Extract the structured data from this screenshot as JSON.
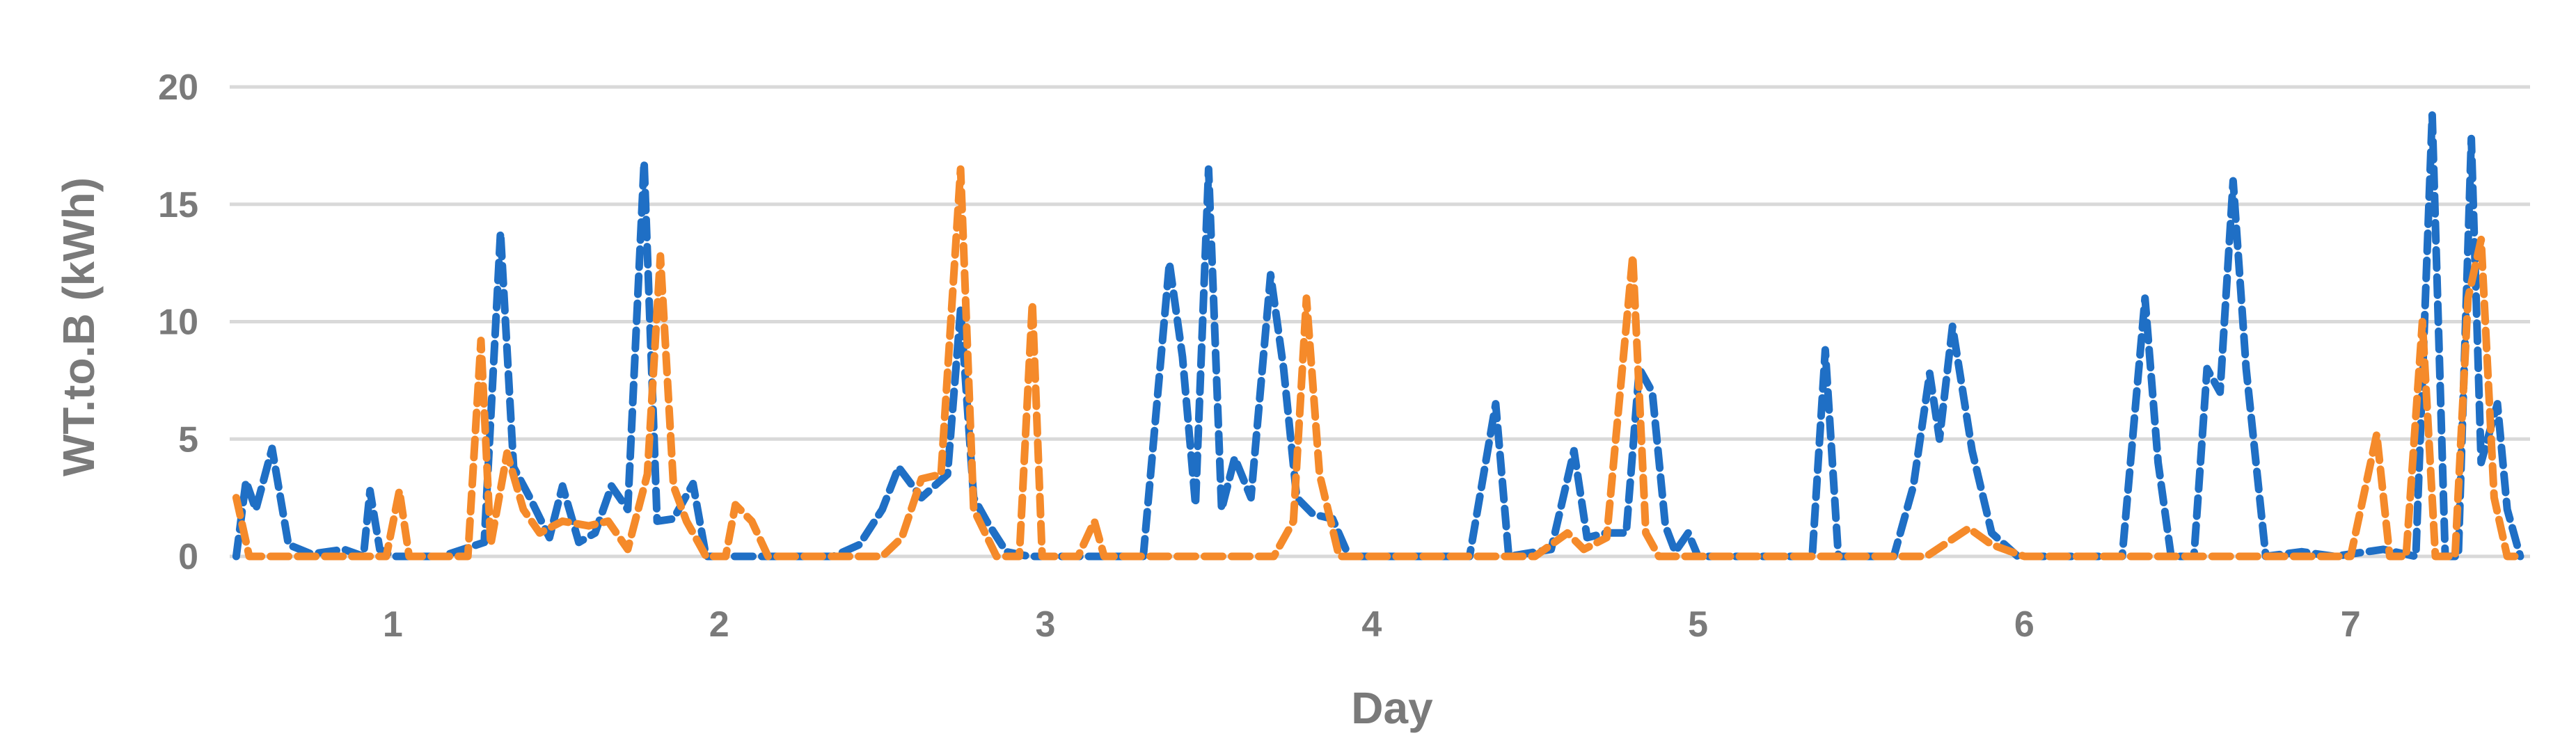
{
  "chart_data": {
    "type": "line",
    "title": "",
    "xlabel": "Day",
    "ylabel": "WT.to.B (kWh)",
    "xlim": [
      0.5,
      7.55
    ],
    "ylim": [
      0,
      20
    ],
    "x_ticks": [
      1,
      2,
      3,
      4,
      5,
      6,
      7
    ],
    "x_tick_labels": [
      "1",
      "2",
      "3",
      "4",
      "5",
      "6",
      "7"
    ],
    "y_ticks": [
      0,
      5,
      10,
      15,
      20
    ],
    "y_tick_labels": [
      "0",
      "5",
      "10",
      "15",
      "20"
    ],
    "grid": true,
    "legend": "none",
    "series": [
      {
        "color": "#1f6fc5",
        "style": "dashed",
        "points": [
          [
            0.52,
            0
          ],
          [
            0.55,
            3.2
          ],
          [
            0.58,
            2.0
          ],
          [
            0.63,
            4.6
          ],
          [
            0.68,
            0.5
          ],
          [
            0.75,
            0.1
          ],
          [
            0.85,
            0.3
          ],
          [
            0.91,
            0
          ],
          [
            0.93,
            2.8
          ],
          [
            0.96,
            0.3
          ],
          [
            1.0,
            0
          ],
          [
            1.15,
            0
          ],
          [
            1.28,
            0.6
          ],
          [
            1.33,
            13.8
          ],
          [
            1.37,
            3.8
          ],
          [
            1.42,
            2.5
          ],
          [
            1.48,
            0.8
          ],
          [
            1.52,
            3.0
          ],
          [
            1.57,
            0.6
          ],
          [
            1.62,
            1.0
          ],
          [
            1.67,
            3.0
          ],
          [
            1.72,
            2.0
          ],
          [
            1.77,
            16.8
          ],
          [
            1.81,
            1.5
          ],
          [
            1.86,
            1.6
          ],
          [
            1.92,
            3.1
          ],
          [
            1.96,
            0
          ],
          [
            2.2,
            0
          ],
          [
            2.35,
            0
          ],
          [
            2.43,
            0.5
          ],
          [
            2.5,
            2.0
          ],
          [
            2.55,
            3.8
          ],
          [
            2.62,
            2.5
          ],
          [
            2.7,
            3.5
          ],
          [
            2.74,
            10.5
          ],
          [
            2.78,
            2.5
          ],
          [
            2.82,
            1.5
          ],
          [
            2.88,
            0.2
          ],
          [
            2.95,
            0
          ],
          [
            3.2,
            0
          ],
          [
            3.3,
            0
          ],
          [
            3.38,
            12.5
          ],
          [
            3.42,
            8.5
          ],
          [
            3.46,
            2.2
          ],
          [
            3.5,
            16.5
          ],
          [
            3.54,
            2.0
          ],
          [
            3.58,
            4.2
          ],
          [
            3.63,
            2.5
          ],
          [
            3.69,
            12.0
          ],
          [
            3.73,
            8.0
          ],
          [
            3.77,
            2.5
          ],
          [
            3.82,
            1.8
          ],
          [
            3.88,
            1.6
          ],
          [
            3.93,
            0
          ],
          [
            4.3,
            0
          ],
          [
            4.38,
            6.5
          ],
          [
            4.42,
            0
          ],
          [
            4.55,
            0.3
          ],
          [
            4.62,
            4.5
          ],
          [
            4.66,
            0.8
          ],
          [
            4.72,
            1.0
          ],
          [
            4.78,
            1.0
          ],
          [
            4.82,
            8.0
          ],
          [
            4.86,
            7.0
          ],
          [
            4.9,
            1.3
          ],
          [
            4.93,
            0.2
          ],
          [
            4.97,
            1.0
          ],
          [
            5.0,
            0
          ],
          [
            5.35,
            0
          ],
          [
            5.39,
            8.8
          ],
          [
            5.43,
            0
          ],
          [
            5.6,
            0
          ],
          [
            5.66,
            3.0
          ],
          [
            5.71,
            7.8
          ],
          [
            5.74,
            5.0
          ],
          [
            5.78,
            9.8
          ],
          [
            5.84,
            4.5
          ],
          [
            5.9,
            1.0
          ],
          [
            5.98,
            0
          ],
          [
            6.3,
            0
          ],
          [
            6.37,
            11.0
          ],
          [
            6.41,
            4.0
          ],
          [
            6.45,
            0
          ],
          [
            6.52,
            0
          ],
          [
            6.56,
            8.0
          ],
          [
            6.6,
            7.0
          ],
          [
            6.64,
            16.0
          ],
          [
            6.68,
            8.0
          ],
          [
            6.74,
            0
          ],
          [
            6.85,
            0.2
          ],
          [
            6.95,
            0
          ],
          [
            7.1,
            0.3
          ],
          [
            7.2,
            0
          ],
          [
            7.25,
            18.8
          ],
          [
            7.29,
            0
          ],
          [
            7.33,
            0
          ],
          [
            7.37,
            17.8
          ],
          [
            7.4,
            4.0
          ],
          [
            7.45,
            6.5
          ],
          [
            7.48,
            2.0
          ],
          [
            7.52,
            0
          ]
        ]
      },
      {
        "color": "#f58a2a",
        "style": "dashed",
        "points": [
          [
            0.52,
            2.5
          ],
          [
            0.56,
            0
          ],
          [
            0.98,
            0
          ],
          [
            1.02,
            2.8
          ],
          [
            1.05,
            0
          ],
          [
            1.23,
            0
          ],
          [
            1.27,
            9.2
          ],
          [
            1.3,
            0.5
          ],
          [
            1.35,
            4.4
          ],
          [
            1.4,
            2.0
          ],
          [
            1.45,
            1.0
          ],
          [
            1.52,
            1.5
          ],
          [
            1.6,
            1.3
          ],
          [
            1.66,
            1.5
          ],
          [
            1.72,
            0.3
          ],
          [
            1.78,
            3.5
          ],
          [
            1.82,
            12.8
          ],
          [
            1.86,
            3.0
          ],
          [
            1.9,
            1.5
          ],
          [
            1.96,
            0
          ],
          [
            2.02,
            0
          ],
          [
            2.05,
            2.2
          ],
          [
            2.1,
            1.5
          ],
          [
            2.15,
            0
          ],
          [
            2.5,
            0
          ],
          [
            2.56,
            0.8
          ],
          [
            2.62,
            3.3
          ],
          [
            2.68,
            3.5
          ],
          [
            2.74,
            16.5
          ],
          [
            2.78,
            2.0
          ],
          [
            2.85,
            0
          ],
          [
            2.92,
            0
          ],
          [
            2.96,
            10.8
          ],
          [
            2.99,
            0
          ],
          [
            3.1,
            0
          ],
          [
            3.15,
            1.5
          ],
          [
            3.18,
            0
          ],
          [
            3.7,
            0
          ],
          [
            3.76,
            1.5
          ],
          [
            3.8,
            11.0
          ],
          [
            3.84,
            3.5
          ],
          [
            3.9,
            0
          ],
          [
            4.4,
            0
          ],
          [
            4.5,
            0
          ],
          [
            4.6,
            1.0
          ],
          [
            4.65,
            0.3
          ],
          [
            4.72,
            0.8
          ],
          [
            4.8,
            12.8
          ],
          [
            4.84,
            1.0
          ],
          [
            4.88,
            0
          ],
          [
            5.2,
            0
          ],
          [
            5.7,
            0
          ],
          [
            5.83,
            1.2
          ],
          [
            5.9,
            0.5
          ],
          [
            6.0,
            0
          ],
          [
            6.9,
            0
          ],
          [
            7.0,
            0
          ],
          [
            7.08,
            5.2
          ],
          [
            7.12,
            0
          ],
          [
            7.17,
            0
          ],
          [
            7.22,
            10.0
          ],
          [
            7.26,
            0
          ],
          [
            7.32,
            0
          ],
          [
            7.36,
            11.0
          ],
          [
            7.4,
            13.5
          ],
          [
            7.44,
            2.5
          ],
          [
            7.48,
            0
          ],
          [
            7.52,
            0
          ]
        ]
      }
    ]
  }
}
